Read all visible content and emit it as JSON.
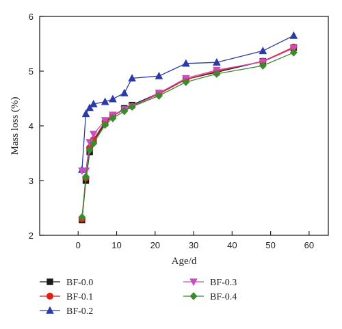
{
  "chart_data": {
    "type": "line",
    "title": "",
    "xlabel": "Age/d",
    "ylabel": "Mass loss (%)",
    "xlim": [
      -10,
      65
    ],
    "ylim": [
      2,
      6
    ],
    "xticks": [
      0,
      10,
      20,
      30,
      40,
      50,
      60
    ],
    "yticks": [
      2,
      3,
      4,
      5,
      6
    ],
    "grid": false,
    "legend_position": "bottom",
    "x": [
      1,
      2,
      3,
      4,
      7,
      9,
      12,
      14,
      21,
      28,
      36,
      48,
      56
    ],
    "series": [
      {
        "name": "BF-0.0",
        "color": "#1a1a1a",
        "marker": "square",
        "values": [
          2.28,
          3.0,
          3.52,
          3.72,
          4.05,
          4.18,
          4.32,
          4.38,
          4.6,
          4.85,
          4.98,
          5.18,
          5.43
        ]
      },
      {
        "name": "BF-0.1",
        "color": "#e0201b",
        "marker": "circle",
        "values": [
          2.3,
          3.05,
          3.6,
          3.75,
          4.08,
          4.18,
          4.3,
          4.36,
          4.58,
          4.85,
          5.0,
          5.18,
          5.44
        ]
      },
      {
        "name": "BF-0.2",
        "color": "#2a3aa6",
        "marker": "triangle-up",
        "values": [
          3.2,
          4.22,
          4.33,
          4.4,
          4.44,
          4.49,
          4.6,
          4.87,
          4.91,
          5.14,
          5.16,
          5.37,
          5.65
        ]
      },
      {
        "name": "BF-0.3",
        "color": "#c84fc0",
        "marker": "triangle-down",
        "values": [
          3.18,
          3.18,
          3.7,
          3.85,
          4.1,
          4.2,
          4.3,
          4.35,
          4.6,
          4.87,
          5.02,
          5.17,
          5.42
        ]
      },
      {
        "name": "BF-0.4",
        "color": "#3a8a30",
        "marker": "diamond",
        "values": [
          2.33,
          3.07,
          3.56,
          3.68,
          4.02,
          4.14,
          4.27,
          4.35,
          4.55,
          4.8,
          4.95,
          5.1,
          5.34
        ]
      }
    ]
  }
}
